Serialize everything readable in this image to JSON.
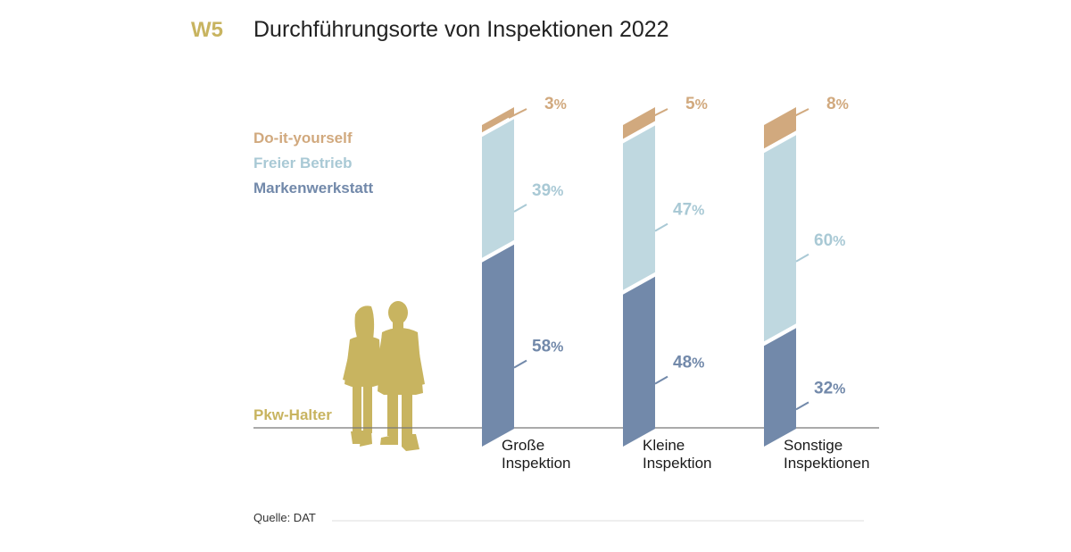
{
  "header": {
    "figure_number": "W5",
    "title": "Durchführungsorte von Inspektionen 2022"
  },
  "pkw_label": "Pkw-Halter",
  "source": "Quelle: DAT",
  "colors": {
    "accent": "#c8b460",
    "diy": "#d1a97e",
    "freier": "#bfd8e0",
    "marken": "#7289aa",
    "freier_text": "#a9c9d5"
  },
  "chart_data": {
    "type": "bar",
    "stacked": true,
    "categories": [
      [
        "Große",
        "Inspektion"
      ],
      [
        "Kleine",
        "Inspektion"
      ],
      [
        "Sonstige",
        "Inspektionen"
      ]
    ],
    "series": [
      {
        "name": "Markenwerkstatt",
        "values": [
          58,
          48,
          32
        ],
        "color": "#7289aa"
      },
      {
        "name": "Freier Betrieb",
        "values": [
          39,
          47,
          60
        ],
        "color": "#bfd8e0"
      },
      {
        "name": "Do-it-yourself",
        "values": [
          3,
          5,
          8
        ],
        "color": "#d1a97e"
      }
    ],
    "legend_order": [
      "Do-it-yourself",
      "Freier Betrieb",
      "Markenwerkstatt"
    ],
    "legend_placement": "left",
    "unit": "%",
    "ylim": [
      0,
      100
    ],
    "grid": false
  }
}
